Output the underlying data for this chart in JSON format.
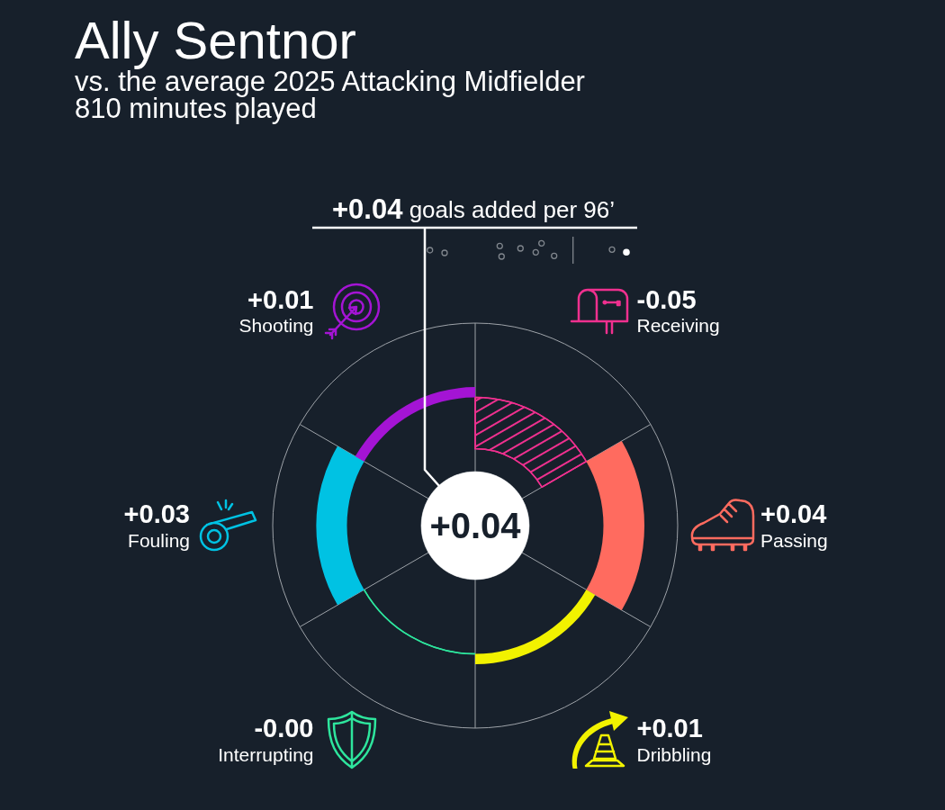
{
  "chart_data": {
    "type": "other",
    "title": "Ally Sentnor",
    "subtitle": "vs. the average 2025 Attacking Midfielder\n810 minutes played",
    "annotations": [
      "+0.04 goals added per 96’",
      "+0.04"
    ],
    "categories": [
      "Receiving",
      "Passing",
      "Dribbling",
      "Interrupting",
      "Fouling",
      "Shooting"
    ],
    "values": [
      -0.05,
      0.04,
      0.01,
      -0.0,
      0.03,
      0.01
    ],
    "value_labels": [
      "-0.05",
      "+0.04",
      "+0.01",
      "-0.00",
      "+0.03",
      "+0.01"
    ],
    "colors": [
      "#f0308f",
      "#ff6b5f",
      "#f2f200",
      "#2ee59d",
      "#00c2e3",
      "#a414d4"
    ]
  }
}
